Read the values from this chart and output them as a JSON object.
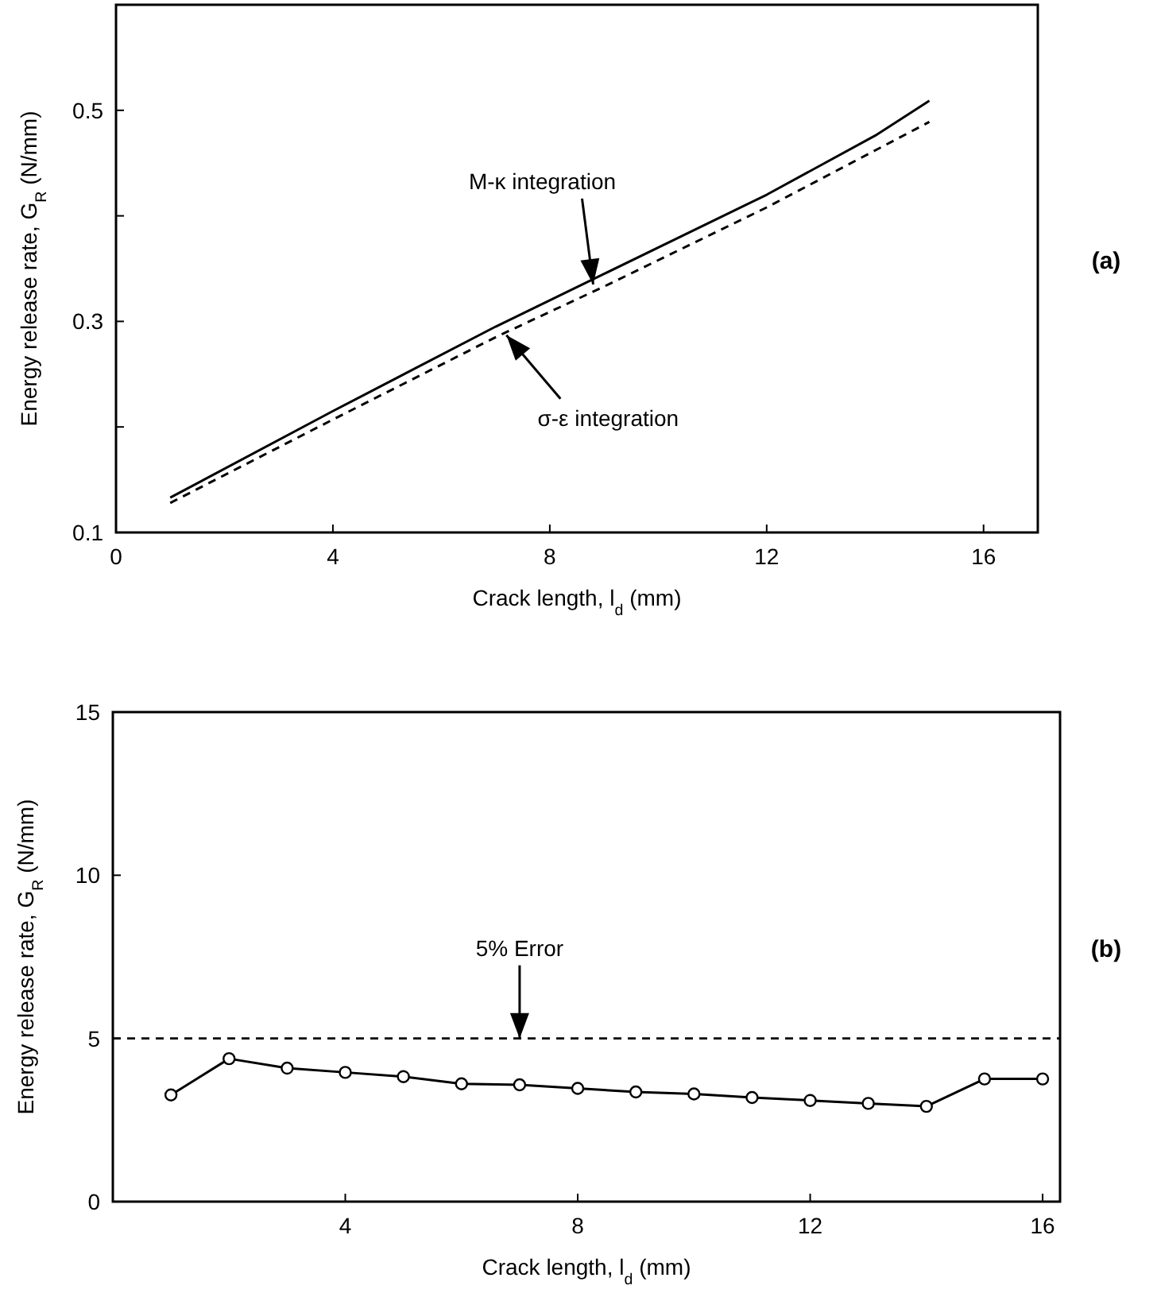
{
  "chart_data": [
    {
      "type": "line",
      "xlabel": "Crack length, l$_{d}$ (mm)",
      "ylabel": "Energy release rate, G$_{R}$ (N/mm)",
      "xlim": [
        0,
        17
      ],
      "xticks": [
        0,
        4,
        8,
        12,
        16
      ],
      "ylim": [
        0.1,
        0.6
      ],
      "yticks": [
        0.1,
        {
          "value": 0.2,
          "label": null
        },
        0.3,
        {
          "value": 0.4,
          "label": null
        },
        0.5
      ],
      "marker": "none",
      "series": [
        {
          "color": "#000000",
          "line_style": "solid",
          "x": [
            1,
            4,
            7,
            9,
            12,
            14,
            15
          ],
          "values": [
            0.133,
            0.215,
            0.295,
            0.345,
            0.42,
            0.476,
            0.509
          ]
        },
        {
          "color": "#000000",
          "line_style": "dashed",
          "x": [
            1,
            4,
            7,
            9,
            12,
            14,
            15
          ],
          "values": [
            0.128,
            0.207,
            0.285,
            0.333,
            0.408,
            0.462,
            0.489
          ]
        }
      ],
      "annotations": [
        {
          "text": "M-κ integration",
          "x": 8.8,
          "y": 0.335
        },
        {
          "text": "σ-ε integration",
          "x": 7.2,
          "y": 0.287
        },
        "(a)"
      ]
    },
    {
      "type": "line",
      "xlabel": "Crack length, l$_{d}$ (mm)",
      "ylabel": "Energy release rate, G$_{R}$ (N/mm)",
      "xlim": [
        0,
        16.3
      ],
      "xticks": [
        4,
        8,
        12,
        16
      ],
      "ylim": [
        0,
        15
      ],
      "yticks": [
        0,
        5,
        10,
        15
      ],
      "marker": "circle",
      "series": [
        {
          "color": "#000000",
          "line_style": "solid",
          "x": [
            1,
            2,
            3,
            4,
            5,
            6,
            7,
            8,
            9,
            10,
            11,
            12,
            13,
            14,
            15,
            16
          ],
          "values": [
            3.27,
            4.38,
            4.09,
            3.96,
            3.83,
            3.61,
            3.58,
            3.47,
            3.36,
            3.3,
            3.19,
            3.1,
            3.01,
            2.92,
            3.76,
            3.76
          ]
        }
      ],
      "ref_lines": [
        {
          "axis": "y",
          "value": 5,
          "line_style": "dashed",
          "color": "#000000"
        }
      ],
      "annotations": [
        {
          "text": "5% Error",
          "x": 7,
          "y": 5
        },
        "(b)"
      ]
    }
  ]
}
